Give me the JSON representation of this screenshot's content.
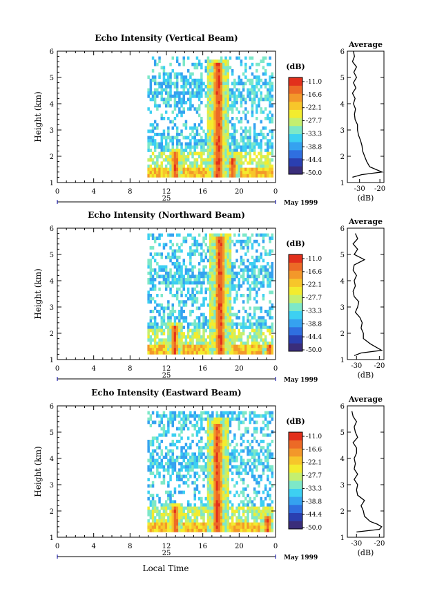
{
  "figure": {
    "panels": [
      {
        "title": "Echo Intensity (Vertical Beam)",
        "avg_title": "Average"
      },
      {
        "title": "Echo Intensity (Northward Beam)",
        "avg_title": "Average"
      },
      {
        "title": "Echo Intensity (Eastward Beam)",
        "avg_title": "Average"
      }
    ],
    "ylabel": "Height (km)",
    "xlabel": "Local Time",
    "date_label": "May 1999",
    "day_label": "25",
    "cbar_unit": "(dB)",
    "avg_xlabel": "(dB)",
    "colors": [
      "#3a2d7a",
      "#2a3fb0",
      "#2f6fe0",
      "#35a2f0",
      "#3dd0f2",
      "#7de8c8",
      "#c4ef70",
      "#f3ec2e",
      "#f7c62a",
      "#f3982a",
      "#ec6a26",
      "#e2301c"
    ]
  },
  "chart_data": [
    {
      "type": "heatmap",
      "title": "Echo Intensity (Vertical Beam)",
      "ylabel": "Height (km)",
      "x_ticks": [
        "0",
        "4",
        "8",
        "12",
        "16",
        "20",
        "0"
      ],
      "xlim": [
        0,
        24
      ],
      "y_ticks": [
        "1",
        "2",
        "3",
        "4",
        "5",
        "6"
      ],
      "ylim": [
        1,
        6
      ],
      "colorbar_label": "(dB)",
      "colorbar_ticks": [
        "-11.0",
        "-16.6",
        "-22.1",
        "-27.7",
        "-33.3",
        "-38.8",
        "-44.4",
        "-50.0"
      ],
      "data_start_hour": 9.9,
      "convective_cells": [
        {
          "center_hour": 12.9,
          "top_km": 2.2
        },
        {
          "center_hour": 17.6,
          "top_km": 5.6
        },
        {
          "center_hour": 19.2,
          "top_km": 2.0
        }
      ],
      "average_profile": {
        "title": "Average",
        "xlabel": "(dB)",
        "x_ticks": [
          "-30",
          "-20"
        ],
        "xlim": [
          -36,
          -18
        ],
        "height_km": [
          1.2,
          1.3,
          1.4,
          1.5,
          1.6,
          1.8,
          2.0,
          2.2,
          2.4,
          2.6,
          2.8,
          3.0,
          3.2,
          3.4,
          3.6,
          3.8,
          4.0,
          4.2,
          4.4,
          4.6,
          4.8,
          5.0,
          5.2,
          5.4,
          5.6,
          5.8,
          6.0
        ],
        "db": [
          -33.5,
          -29,
          -19,
          -22,
          -25,
          -26.5,
          -27.5,
          -28.5,
          -28.8,
          -29.5,
          -30.5,
          -31,
          -31,
          -32.2,
          -32.5,
          -32,
          -33,
          -32.2,
          -33.5,
          -31.8,
          -33,
          -31.5,
          -32.8,
          -31.5,
          -33.5,
          -32.5,
          -33
        ]
      }
    },
    {
      "type": "heatmap",
      "title": "Echo Intensity (Northward Beam)",
      "ylabel": "Height (km)",
      "x_ticks": [
        "0",
        "4",
        "8",
        "12",
        "16",
        "20",
        "0"
      ],
      "xlim": [
        0,
        24
      ],
      "y_ticks": [
        "1",
        "2",
        "3",
        "4",
        "5",
        "6"
      ],
      "ylim": [
        1,
        6
      ],
      "colorbar_label": "(dB)",
      "colorbar_ticks": [
        "-11.0",
        "-16.6",
        "-22.1",
        "-27.7",
        "-33.3",
        "-38.8",
        "-44.4",
        "-50.0"
      ],
      "data_start_hour": 9.9,
      "convective_cells": [
        {
          "center_hour": 12.8,
          "top_km": 2.3
        },
        {
          "center_hour": 17.8,
          "top_km": 5.7
        },
        {
          "center_hour": 23.2,
          "top_km": 1.6
        }
      ],
      "average_profile": {
        "title": "Average",
        "xlabel": "(dB)",
        "x_ticks": [
          "-30",
          "-20"
        ],
        "xlim": [
          -34,
          -18
        ],
        "height_km": [
          1.15,
          1.25,
          1.35,
          1.45,
          1.6,
          1.8,
          2.0,
          2.2,
          2.4,
          2.6,
          2.8,
          3.0,
          3.2,
          3.4,
          3.6,
          3.8,
          4.0,
          4.2,
          4.4,
          4.6,
          4.8,
          5.0,
          5.2,
          5.4,
          5.6,
          5.8
        ],
        "db": [
          -31,
          -28,
          -19,
          -21,
          -24,
          -27,
          -27,
          -28,
          -27.5,
          -28.5,
          -30.5,
          -29.5,
          -29,
          -31,
          -31.5,
          -30.5,
          -31,
          -30,
          -31.5,
          -31,
          -26.5,
          -31,
          -29.5,
          -31.5,
          -29.5,
          -30.5
        ]
      }
    },
    {
      "type": "heatmap",
      "title": "Echo Intensity (Eastward Beam)",
      "ylabel": "Height (km)",
      "xlabel": "Local Time",
      "x_ticks": [
        "0",
        "4",
        "8",
        "12",
        "16",
        "20",
        "0"
      ],
      "xlim": [
        0,
        24
      ],
      "y_ticks": [
        "1",
        "2",
        "3",
        "4",
        "5",
        "6"
      ],
      "ylim": [
        1,
        6
      ],
      "colorbar_label": "(dB)",
      "colorbar_ticks": [
        "-11.0",
        "-16.6",
        "-22.1",
        "-27.7",
        "-33.3",
        "-38.8",
        "-44.4",
        "-50.0"
      ],
      "data_start_hour": 9.9,
      "convective_cells": [
        {
          "center_hour": 12.9,
          "top_km": 2.2
        },
        {
          "center_hour": 17.5,
          "top_km": 5.4
        },
        {
          "center_hour": 23.0,
          "top_km": 1.9
        }
      ],
      "average_profile": {
        "title": "Average",
        "xlabel": "(dB)",
        "x_ticks": [
          "-30",
          "-20"
        ],
        "xlim": [
          -34,
          -18
        ],
        "height_km": [
          1.2,
          1.3,
          1.4,
          1.5,
          1.6,
          1.8,
          2.0,
          2.2,
          2.4,
          2.6,
          2.8,
          3.0,
          3.2,
          3.4,
          3.6,
          3.8,
          4.0,
          4.2,
          4.4,
          4.6,
          4.8,
          5.0,
          5.2,
          5.4,
          5.6,
          5.8
        ],
        "db": [
          -30,
          -20,
          -19,
          -21,
          -24,
          -26.5,
          -27,
          -28,
          -26.5,
          -29.5,
          -30,
          -29.5,
          -31,
          -29.5,
          -31,
          -30.5,
          -31,
          -30,
          -30,
          -31.5,
          -29.5,
          -30.5,
          -31,
          -30,
          -31.5,
          -32
        ]
      }
    }
  ]
}
